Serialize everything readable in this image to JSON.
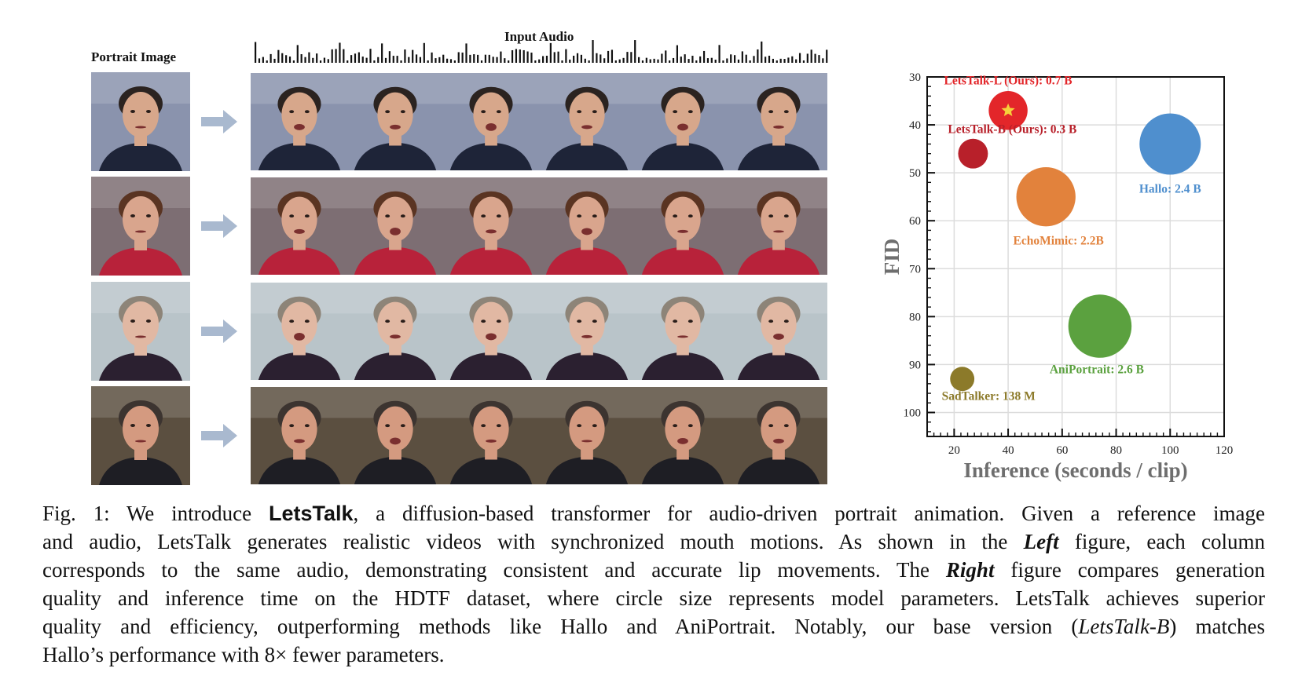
{
  "left_figure": {
    "portrait_label": "Portrait Image",
    "audio_label": "Input Audio",
    "rows": [
      {
        "name": "row-1",
        "bg": "#8a93ad",
        "skin": "#d7a78b",
        "hair": "#2b2320",
        "cloth": "#1e2438"
      },
      {
        "name": "row-2",
        "bg": "#7d6e73",
        "skin": "#d9a58d",
        "hair": "#5a3422",
        "cloth": "#b8223a"
      },
      {
        "name": "row-3",
        "bg": "#b9c4c9",
        "skin": "#e1b8a3",
        "hair": "#8d8478",
        "cloth": "#2b2030"
      },
      {
        "name": "row-4",
        "bg": "#5b4f40",
        "skin": "#d49a80",
        "hair": "#3c3430",
        "cloth": "#1e1e24"
      }
    ]
  },
  "chart_data": {
    "type": "scatter",
    "title": "",
    "xlabel": "Inference (seconds / clip)",
    "ylabel": "FID",
    "xlim": [
      10,
      120
    ],
    "ylim": [
      30,
      105
    ],
    "y_inverted": true,
    "xticks": [
      20,
      40,
      60,
      80,
      100,
      120
    ],
    "yticks": [
      30,
      40,
      50,
      60,
      70,
      80,
      90,
      100
    ],
    "grid": true,
    "size_meaning": "model parameters",
    "points": [
      {
        "label": "LetsTalk-L (Ours): 0.7 B",
        "x": 40,
        "y": 37,
        "params_b": 0.7,
        "color": "#e3262a",
        "star": true
      },
      {
        "label": "LetsTalk-B (Ours): 0.3 B",
        "x": 27,
        "y": 46,
        "params_b": 0.3,
        "color": "#b8202a",
        "star": false
      },
      {
        "label": "Hallo: 2.4 B",
        "x": 100,
        "y": 44,
        "params_b": 2.4,
        "color": "#4f8fce",
        "star": false
      },
      {
        "label": "EchoMimic: 2.2B",
        "x": 54,
        "y": 55,
        "params_b": 2.2,
        "color": "#e2823c",
        "star": false
      },
      {
        "label": "AniPortrait: 2.6 B",
        "x": 74,
        "y": 82,
        "params_b": 2.6,
        "color": "#5ba13f",
        "star": false
      },
      {
        "label": "SadTalker: 138 M",
        "x": 23,
        "y": 93,
        "params_b": 0.138,
        "color": "#8c7a2a",
        "star": false
      }
    ]
  },
  "caption": {
    "lines": [
      [
        "Fig. 1: We introduce ",
        {
          "b": "LetsTalk"
        },
        ", a diffusion-based transformer for audio-driven portrait animation. Given a reference image"
      ],
      [
        "and audio, LetsTalk generates realistic videos with synchronized mouth motions. As shown in the ",
        {
          "bi": "Left"
        },
        " figure, each column"
      ],
      [
        "corresponds to the same audio, demonstrating consistent and accurate lip movements. The ",
        {
          "bi": "Right"
        },
        " figure compares generation"
      ],
      [
        "quality and inference time on the HDTF dataset, where circle size represents model parameters. LetsTalk achieves superior"
      ],
      [
        "quality and efficiency, outperforming methods like Hallo and AniPortrait. Notably, our base version (",
        {
          "i": "LetsTalk-B"
        },
        ") matches"
      ],
      [
        "Hallo’s performance with 8× fewer parameters."
      ]
    ]
  }
}
